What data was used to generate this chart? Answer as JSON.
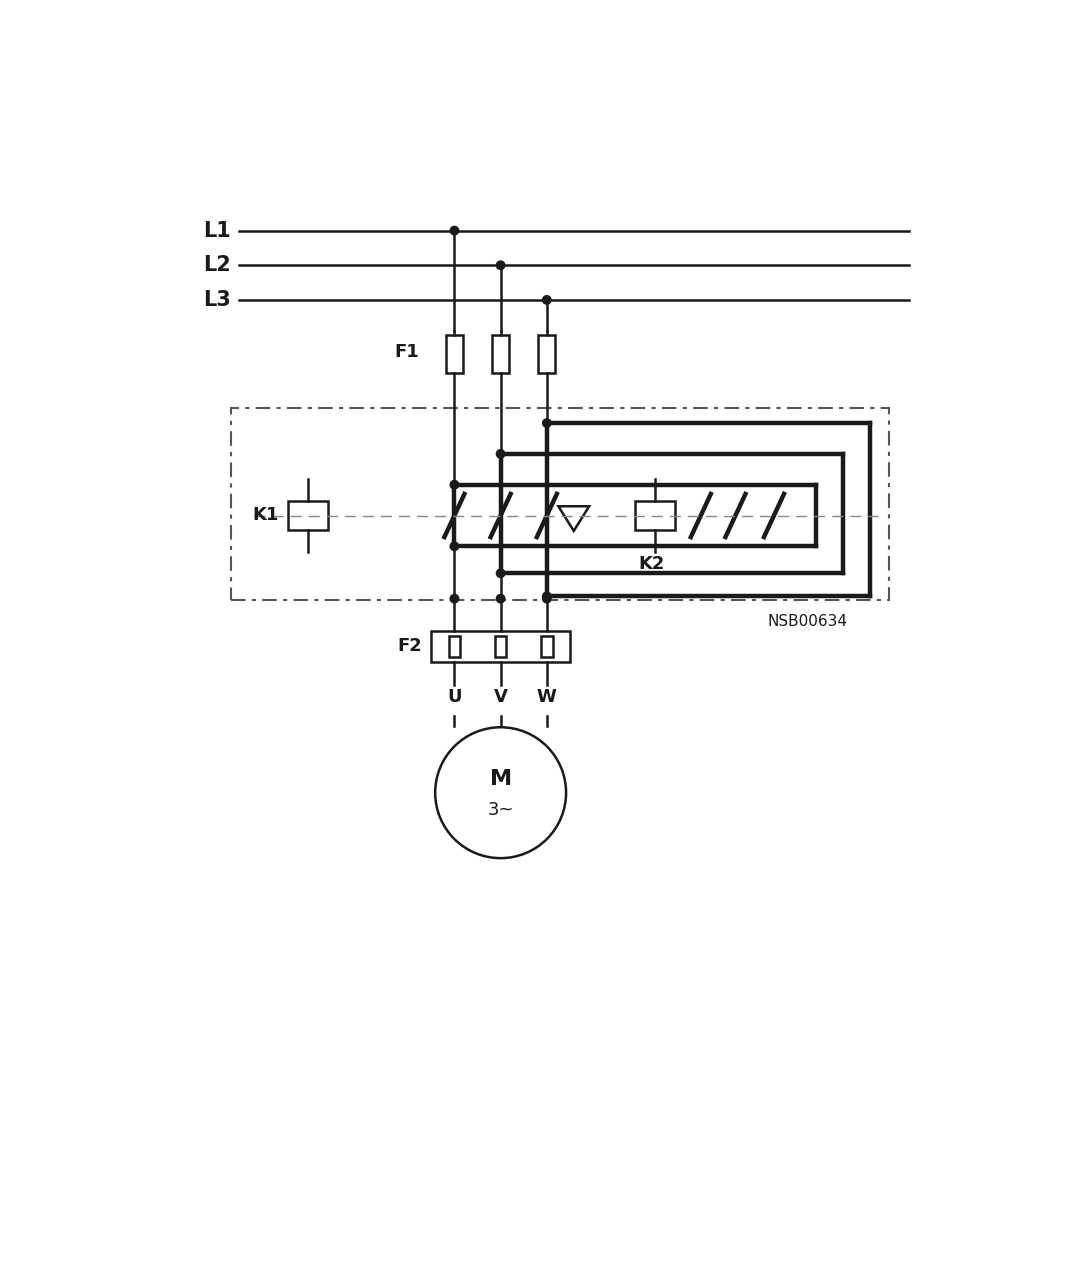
{
  "bg_color": "#ffffff",
  "lc": "#1a1a1a",
  "lw": 1.8,
  "tlw": 3.2,
  "dot_r": 0.055,
  "label_L1": "L1",
  "label_L2": "L2",
  "label_L3": "L3",
  "label_F1": "F1",
  "label_F2": "F2",
  "label_K1": "K1",
  "label_K2": "K2",
  "label_U": "U",
  "label_V": "V",
  "label_W": "W",
  "label_M": "M",
  "label_3ph": "3~",
  "label_NSB": "NSB00634"
}
